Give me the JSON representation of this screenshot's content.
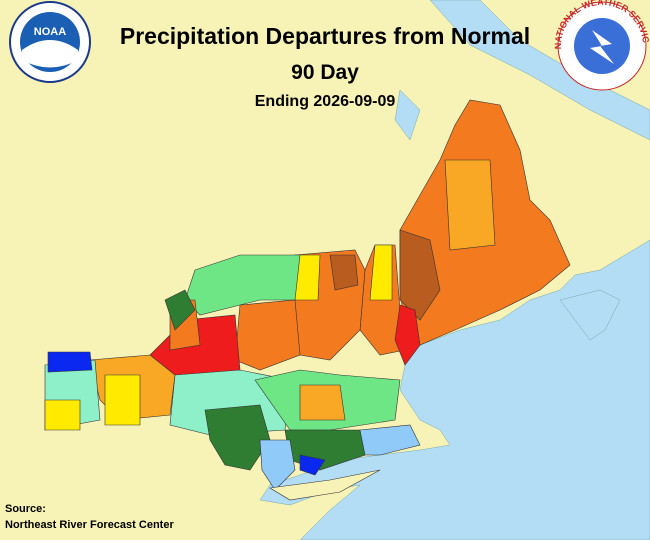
{
  "header": {
    "title": "Precipitation Departures from Normal",
    "period": "90 Day",
    "ending": "Ending 2026-09-09"
  },
  "logos": {
    "noaa": "NOAA",
    "nws": "NATIONAL WEATHER SERVICE"
  },
  "footer": {
    "source_label": "Source:",
    "source": "Northeast River Forecast Center"
  }
}
